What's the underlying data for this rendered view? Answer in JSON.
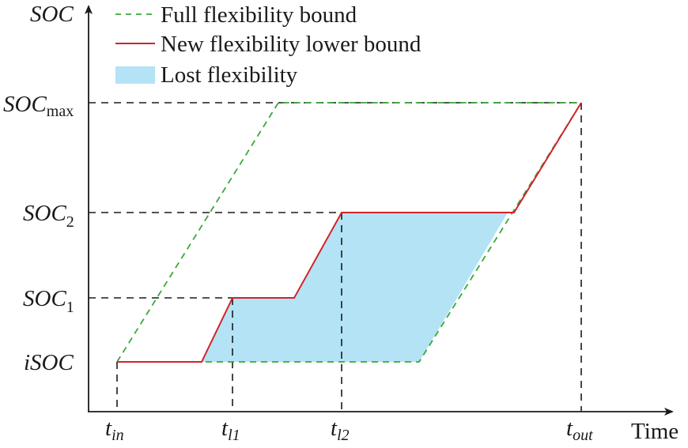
{
  "legend": {
    "full_bound": "Full flexibility bound",
    "new_lower": "New flexibility lower bound",
    "lost": "Lost flexibility"
  },
  "axes": {
    "y_title": "SOC",
    "x_title": "Time"
  },
  "y_labels": {
    "soc_max_main": "SOC",
    "soc_max_sub": "max",
    "soc2_main": "SOC",
    "soc2_sub": "2",
    "soc1_main": "SOC",
    "soc1_sub": "1",
    "isoc": "iSOC"
  },
  "x_labels": {
    "t_in_main": "t",
    "t_in_sub": "in",
    "t_l1_main": "t",
    "t_l1_sub": "l1",
    "t_l2_main": "t",
    "t_l2_sub": "l2",
    "t_out_main": "t",
    "t_out_sub": "out"
  },
  "colors": {
    "full_bound": "#3aa83a",
    "new_lower": "#d2232a",
    "lost_fill": "#b3e3f5",
    "guide": "#1a1a1a"
  }
}
